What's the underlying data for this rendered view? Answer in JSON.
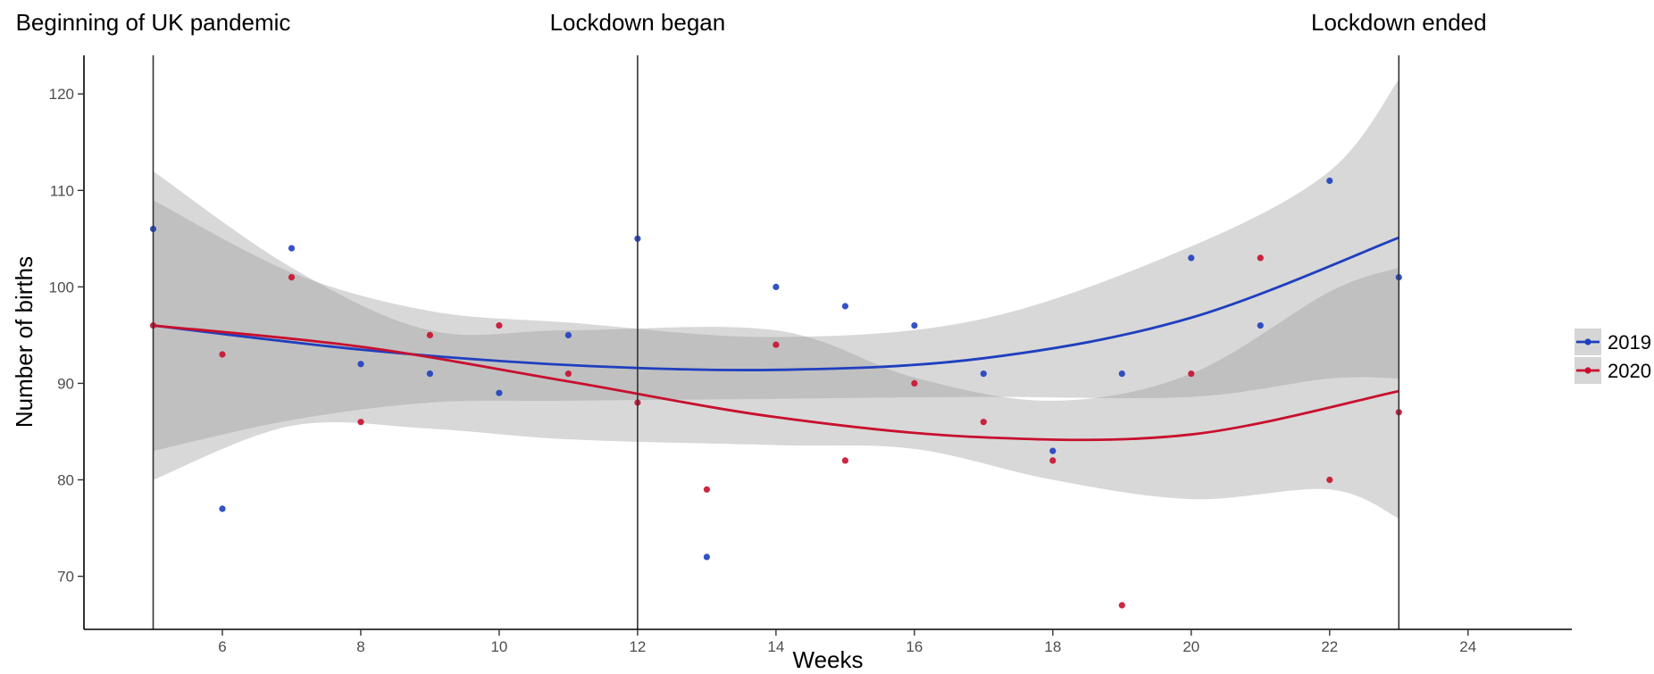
{
  "chart_data": {
    "type": "scatter",
    "xlabel": "Weeks",
    "ylabel": "Number of births",
    "xlim": [
      4,
      25.5
    ],
    "ylim": [
      64.5,
      124
    ],
    "x_ticks": [
      6,
      8,
      10,
      12,
      14,
      16,
      18,
      20,
      22,
      24
    ],
    "y_ticks": [
      70,
      80,
      90,
      100,
      110,
      120
    ],
    "grid": false,
    "legend_position": "right",
    "annotations": [
      {
        "x": 5,
        "label": "Beginning of UK pandemic"
      },
      {
        "x": 12,
        "label": "Lockdown began"
      },
      {
        "x": 23,
        "label": "Lockdown ended"
      }
    ],
    "series": [
      {
        "name": "2019",
        "color": "#1f3fbf",
        "points": [
          [
            5,
            106
          ],
          [
            6,
            77
          ],
          [
            7,
            104
          ],
          [
            8,
            92
          ],
          [
            9,
            91
          ],
          [
            10,
            89
          ],
          [
            11,
            95
          ],
          [
            12,
            105
          ],
          [
            13,
            72
          ],
          [
            14,
            100
          ],
          [
            15,
            98
          ],
          [
            16,
            96
          ],
          [
            17,
            91
          ],
          [
            18,
            83
          ],
          [
            19,
            91
          ],
          [
            20,
            103
          ],
          [
            21,
            96
          ],
          [
            22,
            111
          ],
          [
            23,
            101
          ]
        ],
        "fit": [
          [
            5,
            96
          ],
          [
            8,
            93.5
          ],
          [
            11,
            91.9
          ],
          [
            14,
            91.4
          ],
          [
            17,
            92.6
          ],
          [
            20,
            96.8
          ],
          [
            23,
            105.1
          ]
        ],
        "ci_lower": [
          [
            5,
            83
          ],
          [
            7,
            86.2
          ],
          [
            9,
            88
          ],
          [
            11,
            88.2
          ],
          [
            14,
            88.4
          ],
          [
            17,
            88.6
          ],
          [
            20,
            88.6
          ],
          [
            22,
            90.5
          ],
          [
            23,
            90.5
          ]
        ],
        "ci_upper": [
          [
            5,
            109
          ],
          [
            7,
            101.5
          ],
          [
            9,
            97.5
          ],
          [
            11,
            96.3
          ],
          [
            14,
            94.8
          ],
          [
            17,
            96.7
          ],
          [
            20,
            104.2
          ],
          [
            22,
            112
          ],
          [
            23,
            121.5
          ]
        ]
      },
      {
        "name": "2020",
        "color": "#c8102e",
        "points": [
          [
            5,
            96
          ],
          [
            6,
            93
          ],
          [
            7,
            101
          ],
          [
            8,
            86
          ],
          [
            9,
            95
          ],
          [
            10,
            96
          ],
          [
            11,
            91
          ],
          [
            12,
            88
          ],
          [
            13,
            79
          ],
          [
            14,
            94
          ],
          [
            15,
            82
          ],
          [
            16,
            90
          ],
          [
            17,
            86
          ],
          [
            18,
            82
          ],
          [
            19,
            67
          ],
          [
            20,
            91
          ],
          [
            21,
            103
          ],
          [
            22,
            80
          ],
          [
            23,
            87
          ]
        ],
        "fit": [
          [
            5,
            96
          ],
          [
            8,
            93.8
          ],
          [
            11,
            90.2
          ],
          [
            14,
            86.5
          ],
          [
            17,
            84.4
          ],
          [
            20,
            84.7
          ],
          [
            23,
            89.2
          ]
        ],
        "ci_lower": [
          [
            5,
            80
          ],
          [
            7,
            85.6
          ],
          [
            9,
            85.3
          ],
          [
            11,
            84.2
          ],
          [
            14,
            83.6
          ],
          [
            16,
            83.2
          ],
          [
            18,
            80
          ],
          [
            20,
            78
          ],
          [
            22,
            79
          ],
          [
            23,
            76
          ]
        ],
        "ci_upper": [
          [
            5,
            112
          ],
          [
            7,
            102
          ],
          [
            9,
            95.5
          ],
          [
            11,
            95.5
          ],
          [
            14,
            95.5
          ],
          [
            16,
            90.6
          ],
          [
            18,
            88.2
          ],
          [
            20,
            91
          ],
          [
            22,
            99.5
          ],
          [
            23,
            102
          ]
        ]
      }
    ]
  }
}
